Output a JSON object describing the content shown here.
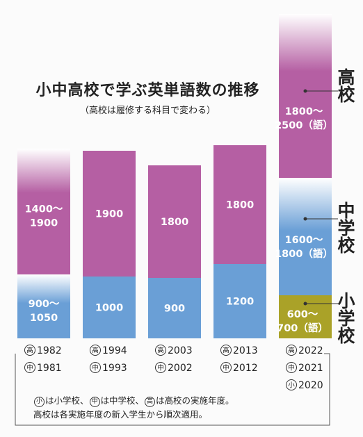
{
  "chart_data": {
    "type": "bar",
    "title": "小中高校で学ぶ英単語数の推移",
    "subtitle": "（高校は履修する科目で変わる）",
    "series": [
      {
        "name": "小学校",
        "label": "小学校"
      },
      {
        "name": "中学校",
        "label": "中学校"
      },
      {
        "name": "高校",
        "label": "高校"
      }
    ],
    "groups": [
      {
        "labels": {
          "elementary": "",
          "middle": "900〜\n1050",
          "high": "1400〜\n1900"
        },
        "values": {
          "elementary": [
            0,
            0
          ],
          "middle": [
            900,
            1050
          ],
          "high": [
            1400,
            1900
          ]
        },
        "years": [
          {
            "mark": "高",
            "year": "1982"
          },
          {
            "mark": "中",
            "year": "1981"
          }
        ]
      },
      {
        "labels": {
          "elementary": "",
          "middle": "1000",
          "high": "1900"
        },
        "values": {
          "elementary": [
            0,
            0
          ],
          "middle": [
            1000,
            1000
          ],
          "high": [
            1900,
            1900
          ]
        },
        "years": [
          {
            "mark": "高",
            "year": "1994"
          },
          {
            "mark": "中",
            "year": "1993"
          }
        ]
      },
      {
        "labels": {
          "elementary": "",
          "middle": "900",
          "high": "1800"
        },
        "values": {
          "elementary": [
            0,
            0
          ],
          "middle": [
            900,
            900
          ],
          "high": [
            1800,
            1800
          ]
        },
        "years": [
          {
            "mark": "高",
            "year": "2003"
          },
          {
            "mark": "中",
            "year": "2002"
          }
        ]
      },
      {
        "labels": {
          "elementary": "",
          "middle": "1200",
          "high": "1800"
        },
        "values": {
          "elementary": [
            0,
            0
          ],
          "middle": [
            1200,
            1200
          ],
          "high": [
            1800,
            1800
          ]
        },
        "years": [
          {
            "mark": "高",
            "year": "2013"
          },
          {
            "mark": "中",
            "year": "2012"
          }
        ]
      },
      {
        "labels": {
          "elementary": "600〜\n700（語）",
          "middle": "1600〜\n1800（語）",
          "high": "1800〜\n2500（語）"
        },
        "values": {
          "elementary": [
            600,
            700
          ],
          "middle": [
            1600,
            1800
          ],
          "high": [
            1800,
            2500
          ]
        },
        "years": [
          {
            "mark": "高",
            "year": "2022"
          },
          {
            "mark": "中",
            "year": "2021"
          },
          {
            "mark": "小",
            "year": "2020"
          }
        ]
      }
    ],
    "notes": [
      [
        {
          "mark": "小"
        },
        {
          "text": "は小学校、"
        },
        {
          "mark": "中"
        },
        {
          "text": "は中学校、"
        },
        {
          "mark": "高"
        },
        {
          "text": "は高校の実施年度。"
        }
      ],
      [
        {
          "text": "高校は各実施年度の新入学生から順次適用。"
        }
      ]
    ],
    "colors": {
      "elementary": "#aaa228",
      "middle": "#6a9fd6",
      "high": "#b55fa3",
      "fade": "#ffffff"
    }
  }
}
